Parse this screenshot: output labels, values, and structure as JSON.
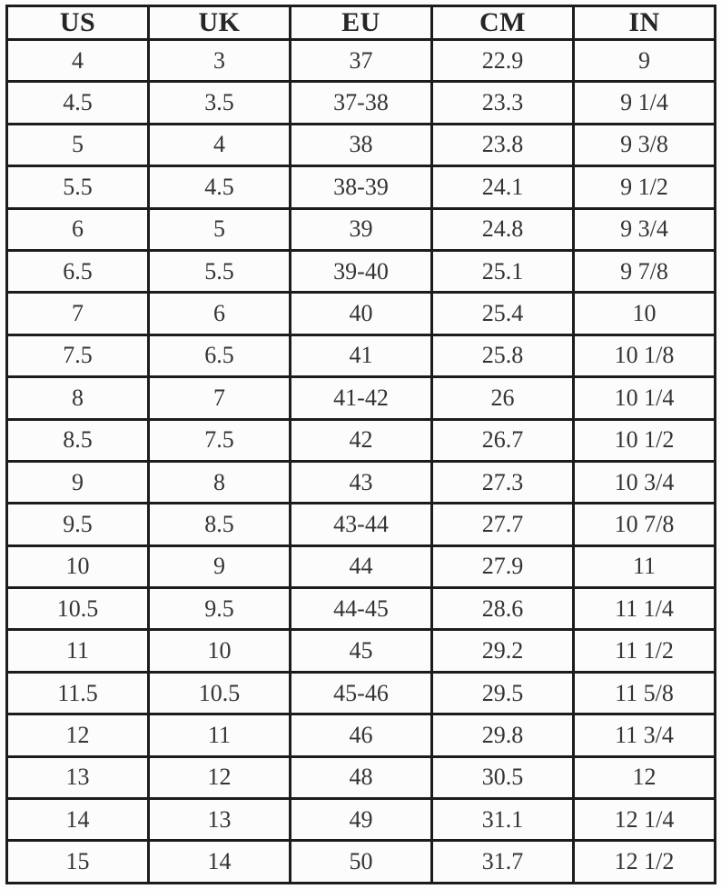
{
  "table": {
    "columns": [
      "US",
      "UK",
      "EU",
      "CM",
      "IN"
    ],
    "rows": [
      [
        "4",
        "3",
        "37",
        "22.9",
        "9"
      ],
      [
        "4.5",
        "3.5",
        "37-38",
        "23.3",
        "9 1/4"
      ],
      [
        "5",
        "4",
        "38",
        "23.8",
        "9 3/8"
      ],
      [
        "5.5",
        "4.5",
        "38-39",
        "24.1",
        "9 1/2"
      ],
      [
        "6",
        "5",
        "39",
        "24.8",
        "9 3/4"
      ],
      [
        "6.5",
        "5.5",
        "39-40",
        "25.1",
        "9 7/8"
      ],
      [
        "7",
        "6",
        "40",
        "25.4",
        "10"
      ],
      [
        "7.5",
        "6.5",
        "41",
        "25.8",
        "10 1/8"
      ],
      [
        "8",
        "7",
        "41-42",
        "26",
        "10 1/4"
      ],
      [
        "8.5",
        "7.5",
        "42",
        "26.7",
        "10 1/2"
      ],
      [
        "9",
        "8",
        "43",
        "27.3",
        "10 3/4"
      ],
      [
        "9.5",
        "8.5",
        "43-44",
        "27.7",
        "10 7/8"
      ],
      [
        "10",
        "9",
        "44",
        "27.9",
        "11"
      ],
      [
        "10.5",
        "9.5",
        "44-45",
        "28.6",
        "11 1/4"
      ],
      [
        "11",
        "10",
        "45",
        "29.2",
        "11 1/2"
      ],
      [
        "11.5",
        "10.5",
        "45-46",
        "29.5",
        "11 5/8"
      ],
      [
        "12",
        "11",
        "46",
        "29.8",
        "11 3/4"
      ],
      [
        "13",
        "12",
        "48",
        "30.5",
        "12"
      ],
      [
        "14",
        "13",
        "49",
        "31.1",
        "12 1/4"
      ],
      [
        "15",
        "14",
        "50",
        "31.7",
        "12 1/2"
      ]
    ]
  },
  "colors": {
    "border": "#1c1c1c",
    "text": "#343434",
    "background": "#fdfdfd"
  }
}
